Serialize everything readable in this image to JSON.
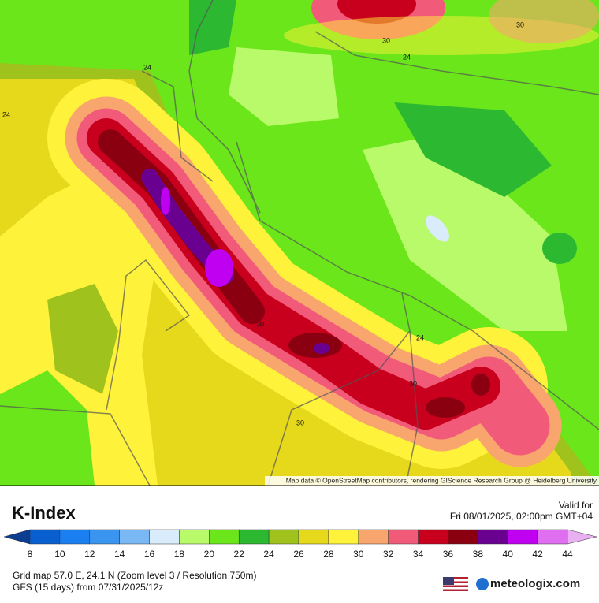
{
  "map": {
    "contour_labels": [
      "30",
      "30",
      "24",
      "24",
      "24",
      "30",
      "24",
      "30",
      "30"
    ],
    "attribution": "Map data © OpenStreetMap contributors, rendering GIScience Research Group @ Heidelberg University"
  },
  "legend": {
    "title": "K-Index",
    "valid_label": "Valid for",
    "valid_time": "Fri 08/01/2025, 02:00pm GMT+04",
    "ticks": [
      8,
      10,
      12,
      14,
      16,
      18,
      20,
      22,
      24,
      26,
      28,
      30,
      32,
      34,
      36,
      38,
      40,
      42,
      44
    ],
    "colors": [
      "#0b3d91",
      "#0a5fd0",
      "#1a7ff0",
      "#3a95f0",
      "#7ab8f5",
      "#d8ecfb",
      "#b8fa6a",
      "#6ae61a",
      "#2cb830",
      "#9fc31c",
      "#e6d81a",
      "#fff23a",
      "#f9a56e",
      "#f25a7a",
      "#c8001e",
      "#8b0010",
      "#6a0090",
      "#c000f0",
      "#e06ef0",
      "#e8b0f0"
    ]
  },
  "footer": {
    "grid_info": "Grid map 57.0 E, 24.1 N (Zoom level 3 / Resolution 750m)",
    "model": "GFS (15 days) from 07/31/2025/12z",
    "brand": "meteologix.com"
  }
}
